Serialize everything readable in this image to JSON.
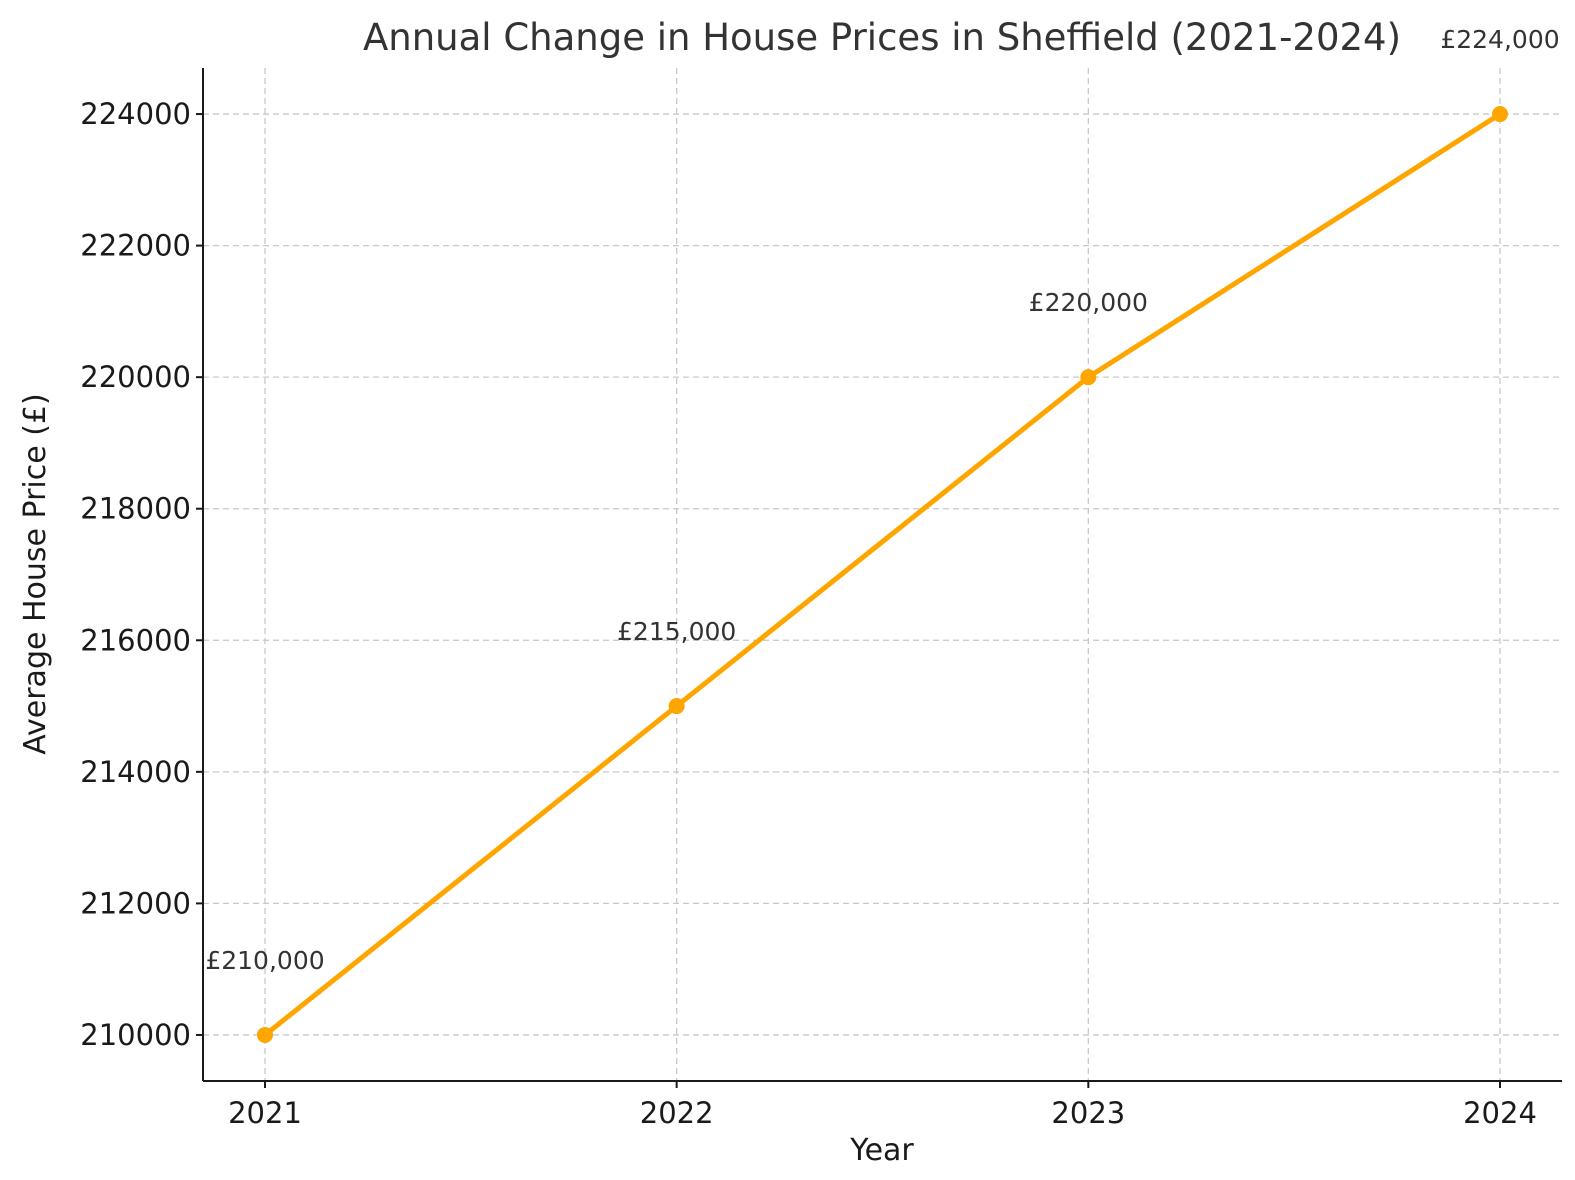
{
  "chart_data": {
    "type": "line",
    "title": "Annual Change in House Prices in Sheffield (2021-2024)",
    "xlabel": "Year",
    "ylabel": "Average House Price (£)",
    "categories": [
      "2021",
      "2022",
      "2023",
      "2024"
    ],
    "series": [
      {
        "name": "Average House Price",
        "values": [
          210000,
          215000,
          220000,
          224000
        ],
        "color": "#FFA500"
      }
    ],
    "data_labels": [
      "£210,000",
      "£215,000",
      "£220,000",
      "£224,000"
    ],
    "y_ticks": [
      210000,
      212000,
      214000,
      216000,
      218000,
      220000,
      222000,
      224000
    ],
    "ylim": [
      209300,
      224700
    ],
    "grid": true
  }
}
